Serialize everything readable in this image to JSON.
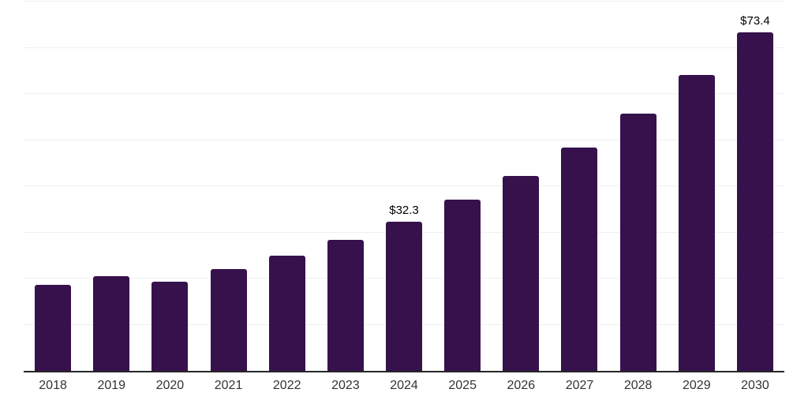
{
  "chart_data": {
    "type": "bar",
    "title": "",
    "xlabel": "",
    "ylabel": "",
    "categories": [
      "2018",
      "2019",
      "2020",
      "2021",
      "2022",
      "2023",
      "2024",
      "2025",
      "2026",
      "2027",
      "2028",
      "2029",
      "2030"
    ],
    "values": [
      18.6,
      20.5,
      19.4,
      22.0,
      24.9,
      28.3,
      32.3,
      37.1,
      42.3,
      48.4,
      55.8,
      64.1,
      73.4
    ],
    "data_labels": {
      "2024": "$32.3",
      "2030": "$73.4"
    },
    "ylim": [
      0,
      80
    ],
    "gridline_step": 10,
    "grid": "horizontal-only",
    "legend_position": "none",
    "colors": {
      "bar": "#36114c",
      "axis_line": "#262626",
      "gridline": "#f0f0f0",
      "data_label_text": "#000000",
      "tick_label_text": "#333333",
      "background": "#ffffff"
    }
  }
}
